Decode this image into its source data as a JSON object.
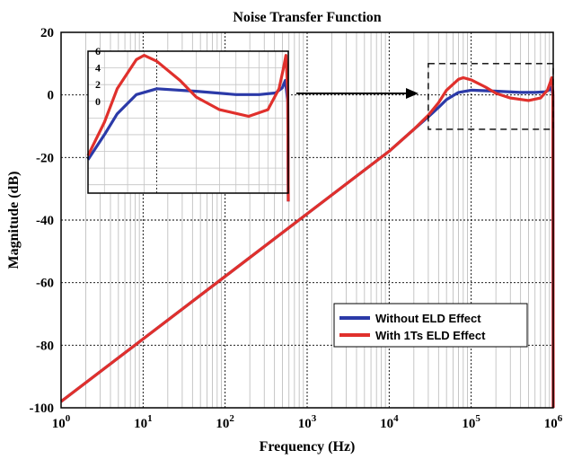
{
  "chart_data": {
    "type": "line",
    "title": "Noise Transfer Function",
    "xlabel": "Frequency (Hz)",
    "ylabel": "Magnitude (dB)",
    "xscale": "log",
    "xlim": [
      1,
      1000000
    ],
    "ylim": [
      -100,
      20
    ],
    "grid": true,
    "legend_position": "bottom-right",
    "x_ticks": [
      {
        "base": "10",
        "exp": "0"
      },
      {
        "base": "10",
        "exp": "1"
      },
      {
        "base": "10",
        "exp": "2"
      },
      {
        "base": "10",
        "exp": "3"
      },
      {
        "base": "10",
        "exp": "4"
      },
      {
        "base": "10",
        "exp": "5"
      },
      {
        "base": "10",
        "exp": "6"
      }
    ],
    "y_ticks": [
      "20",
      "0",
      "-20",
      "-40",
      "-60",
      "-80",
      "-100"
    ],
    "series": [
      {
        "name": "Without ELD Effect",
        "color": "#2b3aa8",
        "x": [
          1,
          10,
          100,
          1000,
          10000,
          20000,
          30000,
          40000,
          50000,
          70000,
          100000,
          200000,
          400000,
          600000,
          800000,
          900000,
          950000,
          990000,
          1000000
        ],
        "y": [
          -98,
          -78,
          -58,
          -38,
          -18,
          -11,
          -7,
          -4,
          -1.5,
          0.8,
          1.5,
          1.2,
          0.8,
          0.8,
          1.0,
          1.6,
          2.5,
          0,
          -100
        ]
      },
      {
        "name": "With 1Ts ELD Effect",
        "color": "#e0302c",
        "x": [
          1,
          10,
          100,
          1000,
          10000,
          20000,
          30000,
          40000,
          50000,
          70000,
          80000,
          100000,
          150000,
          200000,
          300000,
          500000,
          700000,
          850000,
          920000,
          960000,
          990000,
          1000000
        ],
        "y": [
          -98,
          -78,
          -58,
          -38,
          -18,
          -11,
          -6.5,
          -2.5,
          1.5,
          5.0,
          5.5,
          4.8,
          2.5,
          0.5,
          -1.0,
          -1.8,
          -1.0,
          1.5,
          4.0,
          5.5,
          1.0,
          -100
        ]
      }
    ],
    "inset": {
      "xlim": [
        30000,
        1000000
      ],
      "ylim": [
        -11,
        6
      ],
      "y_ticks": [
        "6",
        "4",
        "2",
        "0"
      ],
      "highlight_box": {
        "xlim": [
          30000,
          1000000
        ],
        "ylim": [
          -11,
          10
        ]
      }
    }
  }
}
